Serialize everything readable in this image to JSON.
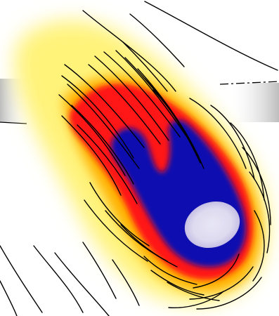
{
  "image": {
    "kind": "illustration",
    "subject": "comet"
  },
  "palette": {
    "background": "#ffffff",
    "outer_glow": "#fff59a",
    "mid_glow": "#ffbf00",
    "flame": "#ff1a1a",
    "core": "#0a14b4",
    "nucleus": "#e6e2f2",
    "ink": "#000000",
    "bar_gray": "#c8c8c8"
  }
}
